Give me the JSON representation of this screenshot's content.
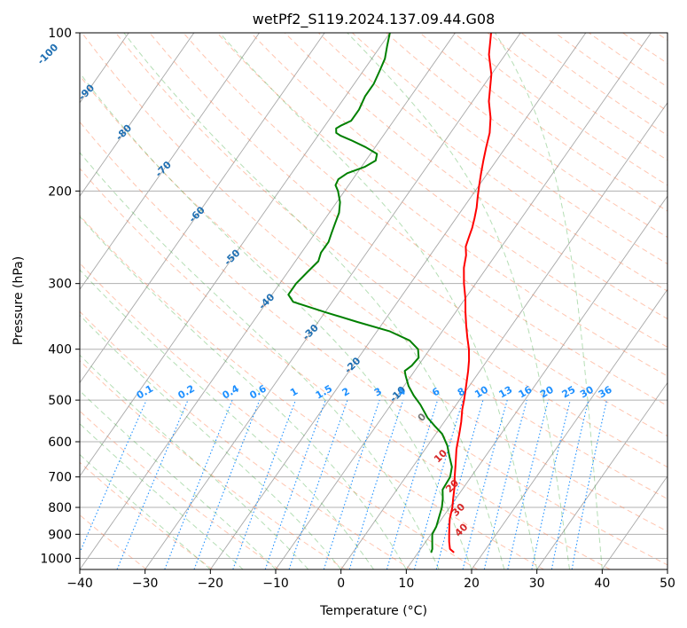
{
  "chart_data": {
    "type": "line",
    "title": "wetPf2_S119.2024.137.09.44.G08",
    "xlabel": "Temperature (°C)",
    "ylabel": "Pressure (hPa)",
    "xlim": [
      -40,
      50
    ],
    "ylim": [
      1050,
      100
    ],
    "yscale": "log",
    "x_ticks": [
      -40,
      -30,
      -20,
      -10,
      0,
      10,
      20,
      30,
      40,
      50
    ],
    "y_ticks": [
      100,
      200,
      300,
      400,
      500,
      600,
      700,
      800,
      900,
      1000
    ],
    "grid": true,
    "skew": true,
    "series": [
      {
        "role": "temperature",
        "color": "#ff0000",
        "p": [
          975,
          960,
          930,
          900,
          870,
          840,
          800,
          770,
          730,
          700,
          660,
          620,
          580,
          550,
          520,
          500,
          470,
          440,
          420,
          400,
          380,
          360,
          340,
          320,
          300,
          280,
          265,
          255,
          245,
          235,
          225,
          215,
          205,
          195,
          185,
          175,
          165,
          155,
          145,
          135,
          120,
          110,
          100
        ],
        "t": [
          15.5,
          14.5,
          13.6,
          12.8,
          12.0,
          11.2,
          10.4,
          9.6,
          8.5,
          7.5,
          6.2,
          4.8,
          3.6,
          2.6,
          1.4,
          0.7,
          -0.5,
          -1.8,
          -2.8,
          -4.0,
          -5.5,
          -7.0,
          -8.5,
          -10.0,
          -11.8,
          -13.5,
          -14.5,
          -15.5,
          -16.0,
          -16.5,
          -17.2,
          -18.0,
          -19.0,
          -20.0,
          -21.0,
          -22.0,
          -23.0,
          -24.0,
          -25.5,
          -27.5,
          -30.0,
          -32.5,
          -34.5
        ]
      },
      {
        "role": "dewpoint",
        "color": "#008000",
        "p": [
          975,
          960,
          930,
          900,
          870,
          840,
          800,
          770,
          740,
          700,
          670,
          640,
          610,
          580,
          560,
          540,
          510,
          490,
          470,
          450,
          440,
          430,
          415,
          400,
          385,
          370,
          355,
          340,
          325,
          315,
          300,
          285,
          272,
          262,
          250,
          240,
          230,
          220,
          210,
          200,
          195,
          190,
          185,
          180,
          175,
          170,
          165,
          160,
          157,
          155,
          152,
          150,
          147,
          140,
          132,
          125,
          118,
          112,
          106,
          100
        ],
        "t": [
          12.0,
          11.8,
          11.0,
          10.2,
          10.0,
          9.5,
          8.8,
          8.0,
          7.0,
          6.8,
          6.0,
          4.5,
          3.0,
          1.0,
          -1.0,
          -3.0,
          -5.5,
          -7.5,
          -9.3,
          -10.8,
          -11.5,
          -11.0,
          -10.8,
          -11.8,
          -14.0,
          -18.0,
          -24.0,
          -30.0,
          -36.0,
          -37.5,
          -37.5,
          -37.0,
          -36.5,
          -37.0,
          -37.0,
          -37.5,
          -38.0,
          -38.5,
          -39.5,
          -41.0,
          -42.0,
          -42.2,
          -41.5,
          -39.5,
          -38.5,
          -39.0,
          -41.5,
          -44.5,
          -46.5,
          -47.5,
          -48.0,
          -47.5,
          -46.5,
          -46.5,
          -47.0,
          -47.0,
          -47.5,
          -48.0,
          -49.0,
          -50.0
        ]
      }
    ],
    "isotherm_labels": [
      "-100",
      "-90",
      "-80",
      "-70",
      "-60",
      "-50",
      "-40",
      "-30",
      "-20",
      "-10"
    ],
    "mixing_ratio_labels": [
      "0.1",
      "0.2",
      "0.4",
      "0.6",
      "1",
      "1.5",
      "2",
      "3",
      "4",
      "6",
      "8",
      "10",
      "13",
      "16",
      "20",
      "25",
      "30",
      "36"
    ],
    "theta_e_labels": [
      "0",
      "10",
      "20",
      "30",
      "40"
    ]
  },
  "colors": {
    "temperature": "#ff0000",
    "dewpoint": "#008000",
    "isotherm_label": "#1f6fb2",
    "mixing_ratio": "#1e90ff",
    "theta_e_label": "#d62728",
    "dry_adiabat": "#ff7f50",
    "moist_adiabat": "#2ca02c",
    "zero_label": "#777777"
  }
}
